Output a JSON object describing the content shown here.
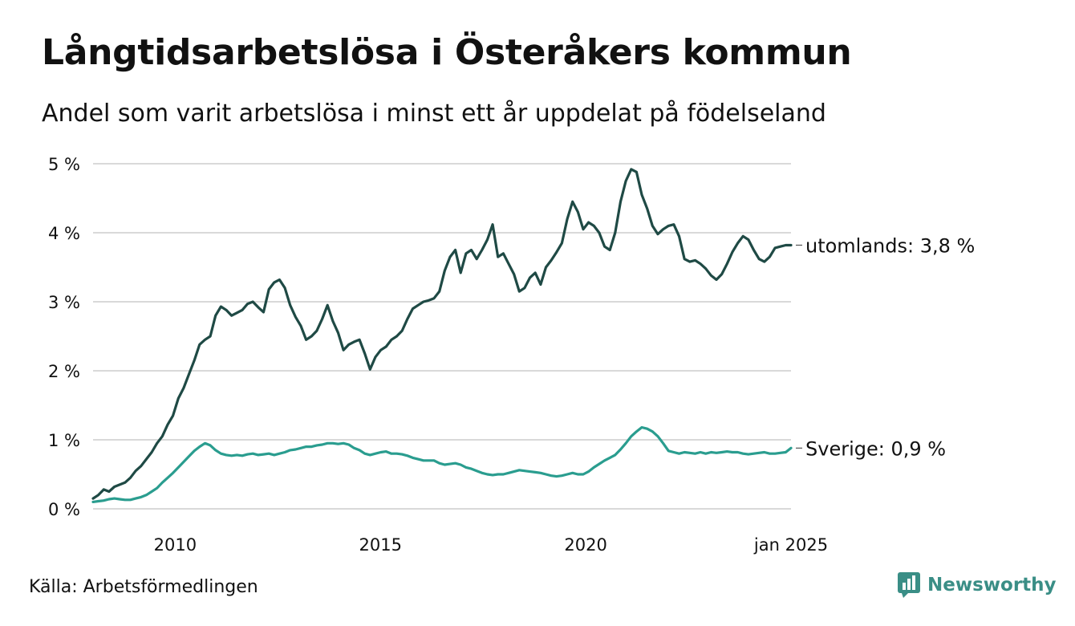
{
  "title": "Långtidsarbetslösa i Österåkers kommun",
  "subtitle": "Andel som varit arbetslösa i minst ett år uppdelat på födelseland",
  "source": "Källa: Arbetsförmedlingen",
  "brand": {
    "name": "Newsworthy",
    "icon": "newsworthy-logo-icon",
    "color": "#3a8e86"
  },
  "chart_data": {
    "type": "line",
    "x_axis": {
      "start": "2008-01",
      "end": "2025-01",
      "ticks": [
        "2010",
        "2015",
        "2020",
        "jan 2025"
      ]
    },
    "y_axis": {
      "ylim": [
        0,
        5
      ],
      "ticks": [
        "0 %",
        "1 %",
        "2 %",
        "3 %",
        "4 %",
        "5 %"
      ]
    },
    "grid": true,
    "series": [
      {
        "name": "utomlands",
        "end_label": "utomlands: 3,8 %",
        "color": "#1f4a45",
        "values": [
          0.15,
          0.2,
          0.28,
          0.25,
          0.32,
          0.35,
          0.38,
          0.45,
          0.55,
          0.62,
          0.72,
          0.82,
          0.95,
          1.05,
          1.22,
          1.35,
          1.6,
          1.75,
          1.95,
          2.15,
          2.38,
          2.45,
          2.5,
          2.8,
          2.93,
          2.88,
          2.8,
          2.84,
          2.88,
          2.97,
          3.0,
          2.92,
          2.85,
          3.18,
          3.28,
          3.32,
          3.2,
          2.95,
          2.78,
          2.65,
          2.45,
          2.5,
          2.58,
          2.75,
          2.95,
          2.72,
          2.55,
          2.3,
          2.38,
          2.42,
          2.45,
          2.25,
          2.02,
          2.2,
          2.3,
          2.35,
          2.45,
          2.5,
          2.58,
          2.75,
          2.9,
          2.95,
          3.0,
          3.02,
          3.05,
          3.15,
          3.45,
          3.65,
          3.75,
          3.42,
          3.7,
          3.75,
          3.62,
          3.75,
          3.9,
          4.12,
          3.65,
          3.7,
          3.55,
          3.4,
          3.15,
          3.2,
          3.35,
          3.42,
          3.25,
          3.5,
          3.6,
          3.72,
          3.85,
          4.2,
          4.45,
          4.3,
          4.05,
          4.15,
          4.1,
          4.0,
          3.8,
          3.75,
          4.0,
          4.45,
          4.75,
          4.92,
          4.88,
          4.55,
          4.35,
          4.1,
          3.98,
          4.05,
          4.1,
          4.12,
          3.95,
          3.62,
          3.58,
          3.6,
          3.55,
          3.48,
          3.38,
          3.32,
          3.4,
          3.55,
          3.72,
          3.85,
          3.95,
          3.9,
          3.75,
          3.62,
          3.58,
          3.65,
          3.78,
          3.8,
          3.82,
          3.82
        ]
      },
      {
        "name": "Sverige",
        "end_label": "Sverige: 0,9 %",
        "color": "#2a9d8f",
        "values": [
          0.1,
          0.11,
          0.12,
          0.14,
          0.15,
          0.14,
          0.13,
          0.13,
          0.15,
          0.17,
          0.2,
          0.25,
          0.3,
          0.38,
          0.45,
          0.52,
          0.6,
          0.68,
          0.76,
          0.84,
          0.9,
          0.95,
          0.92,
          0.85,
          0.8,
          0.78,
          0.77,
          0.78,
          0.77,
          0.79,
          0.8,
          0.78,
          0.79,
          0.8,
          0.78,
          0.8,
          0.82,
          0.85,
          0.86,
          0.88,
          0.9,
          0.9,
          0.92,
          0.93,
          0.95,
          0.95,
          0.94,
          0.95,
          0.93,
          0.88,
          0.85,
          0.8,
          0.78,
          0.8,
          0.82,
          0.83,
          0.8,
          0.8,
          0.79,
          0.77,
          0.74,
          0.72,
          0.7,
          0.7,
          0.7,
          0.66,
          0.64,
          0.65,
          0.66,
          0.64,
          0.6,
          0.58,
          0.55,
          0.52,
          0.5,
          0.49,
          0.5,
          0.5,
          0.52,
          0.54,
          0.56,
          0.55,
          0.54,
          0.53,
          0.52,
          0.5,
          0.48,
          0.47,
          0.48,
          0.5,
          0.52,
          0.5,
          0.5,
          0.54,
          0.6,
          0.65,
          0.7,
          0.74,
          0.78,
          0.86,
          0.95,
          1.05,
          1.12,
          1.18,
          1.16,
          1.12,
          1.05,
          0.95,
          0.84,
          0.82,
          0.8,
          0.82,
          0.81,
          0.8,
          0.82,
          0.8,
          0.82,
          0.81,
          0.82,
          0.83,
          0.82,
          0.82,
          0.8,
          0.79,
          0.8,
          0.81,
          0.82,
          0.8,
          0.8,
          0.81,
          0.82,
          0.88
        ]
      }
    ]
  }
}
